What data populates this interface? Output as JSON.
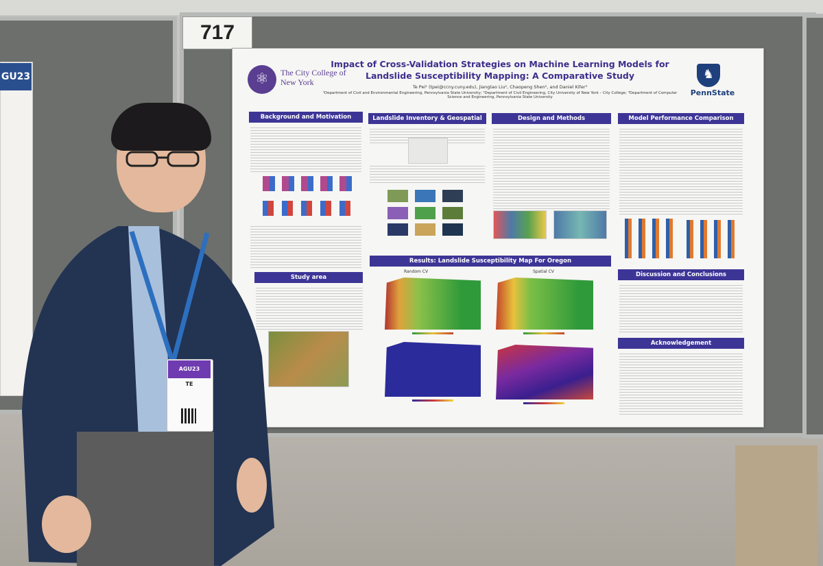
{
  "booth_number": "717",
  "left_poster_header": "GU23",
  "poster": {
    "title": "Impact of Cross-Validation Strategies on Machine Learning Models for Landslide Susceptibility Mapping: A Comparative Study",
    "authors": "Te Pei¹ (tpei@ccny.cuny.edu), Jiangtao Liu², Chaopeng Shen², and Daniel Kifer³",
    "affiliations": "¹Department of Civil and Environmental Engineering, Pennsylvania State University; ²Department of Civil Engineering, City University of New York – City College; ³Department of Computer Science and Engineering, Pennsylvania State University",
    "logo_left": "The City College of New York",
    "logo_right": "PennState",
    "sections": {
      "background": "Background and Motivation",
      "study_area": "Study area",
      "inventory": "Landslide Inventory & Geospatial Data",
      "design": "Design and Methods",
      "results": "Results: Landslide Susceptibility Map For Oregon",
      "performance": "Model Performance Comparison",
      "discussion": "Discussion and Conclusions",
      "acknowledgement": "Acknowledgement"
    },
    "results_labels": {
      "random": "Random CV",
      "spatial": "Spatial CV"
    }
  },
  "badge": {
    "event": "AGU23",
    "name": "TE"
  },
  "colors": {
    "poster_header": "#3d3596",
    "title": "#3e2e8c",
    "ccny_purple": "#5a3e91",
    "psu_blue": "#1e407c"
  }
}
